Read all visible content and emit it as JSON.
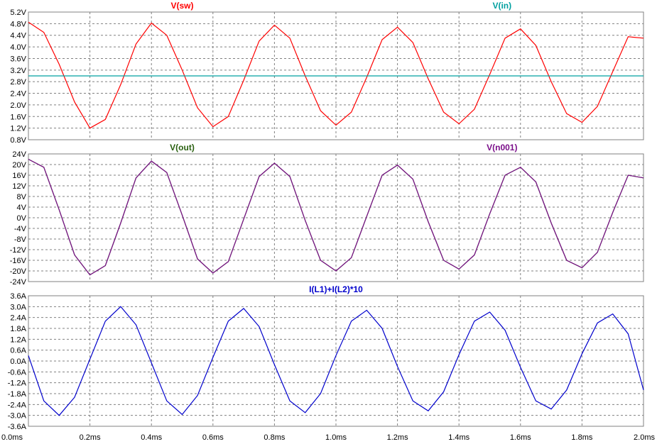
{
  "chart_data": [
    {
      "type": "line",
      "xlim": [
        0,
        2.0
      ],
      "ylim": [
        0.8,
        5.2
      ],
      "x_ticks": [
        "0.0ms",
        "0.2ms",
        "0.4ms",
        "0.6ms",
        "0.8ms",
        "1.0ms",
        "1.2ms",
        "1.4ms",
        "1.6ms",
        "1.8ms",
        "2.0ms"
      ],
      "y_ticks": [
        "0.8V",
        "1.2V",
        "1.6V",
        "2.0V",
        "2.4V",
        "2.8V",
        "3.2V",
        "3.6V",
        "4.0V",
        "4.4V",
        "4.8V",
        "5.2V"
      ],
      "series": [
        {
          "name": "V(sw)",
          "color": "#ff0000",
          "x": [
            0.0,
            0.05,
            0.1,
            0.15,
            0.2,
            0.25,
            0.3,
            0.35,
            0.4,
            0.45,
            0.5,
            0.55,
            0.6,
            0.65,
            0.7,
            0.75,
            0.8,
            0.85,
            0.9,
            0.95,
            1.0,
            1.05,
            1.1,
            1.15,
            1.2,
            1.25,
            1.3,
            1.35,
            1.4,
            1.45,
            1.5,
            1.55,
            1.6,
            1.65,
            1.7,
            1.75,
            1.8,
            1.85,
            1.9,
            1.95,
            2.0
          ],
          "y": [
            4.85,
            4.5,
            3.4,
            2.1,
            1.2,
            1.5,
            2.7,
            4.1,
            4.82,
            4.4,
            3.2,
            1.9,
            1.25,
            1.6,
            2.85,
            4.2,
            4.75,
            4.3,
            3.0,
            1.8,
            1.3,
            1.75,
            2.95,
            4.25,
            4.68,
            4.15,
            2.9,
            1.75,
            1.35,
            1.85,
            3.05,
            4.3,
            4.62,
            4.05,
            2.8,
            1.7,
            1.4,
            1.95,
            3.15,
            4.35,
            4.3
          ]
        },
        {
          "name": "V(in)",
          "color": "#00a0a0",
          "x": [
            0.0,
            2.0
          ],
          "y": [
            3.0,
            3.0
          ]
        }
      ]
    },
    {
      "type": "line",
      "xlim": [
        0,
        2.0
      ],
      "ylim": [
        -24,
        24
      ],
      "x_ticks": [
        "0.0ms",
        "0.2ms",
        "0.4ms",
        "0.6ms",
        "0.8ms",
        "1.0ms",
        "1.2ms",
        "1.4ms",
        "1.6ms",
        "1.8ms",
        "2.0ms"
      ],
      "y_ticks": [
        "-24V",
        "-20V",
        "-16V",
        "-12V",
        "-8V",
        "-4V",
        "0V",
        "4V",
        "8V",
        "12V",
        "16V",
        "20V",
        "24V"
      ],
      "series": [
        {
          "name": "V(out)",
          "color": "#2a6010",
          "x": [
            0.0,
            0.05,
            0.1,
            0.15,
            0.2,
            0.25,
            0.3,
            0.35,
            0.4,
            0.45,
            0.5,
            0.55,
            0.6,
            0.65,
            0.7,
            0.75,
            0.8,
            0.85,
            0.9,
            0.95,
            1.0,
            1.05,
            1.1,
            1.15,
            1.2,
            1.25,
            1.3,
            1.35,
            1.4,
            1.45,
            1.5,
            1.55,
            1.6,
            1.65,
            1.7,
            1.75,
            1.8,
            1.85,
            1.9,
            1.95,
            2.0
          ],
          "y": [
            22,
            19,
            3,
            -14,
            -21.5,
            -18,
            -2,
            15,
            21.3,
            17,
            1,
            -15.5,
            -20.8,
            -16.5,
            -0.5,
            15.5,
            20.5,
            15.5,
            -1,
            -16,
            -20,
            -15,
            0.5,
            16,
            19.8,
            14.5,
            -1.5,
            -16,
            -19.3,
            -14,
            1.5,
            16,
            19,
            13.5,
            -2,
            -16,
            -18.8,
            -13,
            2,
            16,
            15
          ]
        },
        {
          "name": "V(n001)",
          "color": "#7b0f8a",
          "x": [
            0.0,
            0.05,
            0.1,
            0.15,
            0.2,
            0.25,
            0.3,
            0.35,
            0.4,
            0.45,
            0.5,
            0.55,
            0.6,
            0.65,
            0.7,
            0.75,
            0.8,
            0.85,
            0.9,
            0.95,
            1.0,
            1.05,
            1.1,
            1.15,
            1.2,
            1.25,
            1.3,
            1.35,
            1.4,
            1.45,
            1.5,
            1.55,
            1.6,
            1.65,
            1.7,
            1.75,
            1.8,
            1.85,
            1.9,
            1.95,
            2.0
          ],
          "y": [
            22,
            19,
            3,
            -14,
            -21.5,
            -18,
            -2,
            15,
            21.3,
            17,
            1,
            -15.5,
            -20.8,
            -16.5,
            -0.5,
            15.5,
            20.5,
            15.5,
            -1,
            -16,
            -20,
            -15,
            0.5,
            16,
            19.8,
            14.5,
            -1.5,
            -16,
            -19.3,
            -14,
            1.5,
            16,
            19,
            13.5,
            -2,
            -16,
            -18.8,
            -13,
            2,
            16,
            15
          ]
        }
      ]
    },
    {
      "type": "line",
      "xlim": [
        0,
        2.0
      ],
      "ylim": [
        -3.6,
        3.6
      ],
      "x_ticks": [
        "0.0ms",
        "0.2ms",
        "0.4ms",
        "0.6ms",
        "0.8ms",
        "1.0ms",
        "1.2ms",
        "1.4ms",
        "1.6ms",
        "1.8ms",
        "2.0ms"
      ],
      "y_ticks": [
        "-3.6A",
        "-3.0A",
        "-2.4A",
        "-1.8A",
        "-1.2A",
        "-0.6A",
        "0.0A",
        "0.6A",
        "1.2A",
        "1.8A",
        "2.4A",
        "3.0A",
        "3.6A"
      ],
      "series": [
        {
          "name": "I(L1)+I(L2)*10",
          "color": "#0000cc",
          "x": [
            0.0,
            0.05,
            0.1,
            0.15,
            0.2,
            0.25,
            0.3,
            0.35,
            0.4,
            0.45,
            0.5,
            0.55,
            0.6,
            0.65,
            0.7,
            0.75,
            0.8,
            0.85,
            0.9,
            0.95,
            1.0,
            1.05,
            1.1,
            1.15,
            1.2,
            1.25,
            1.3,
            1.35,
            1.4,
            1.45,
            1.5,
            1.55,
            1.6,
            1.65,
            1.7,
            1.75,
            1.8,
            1.85,
            1.9,
            1.95,
            2.0
          ],
          "y": [
            0.3,
            -2.2,
            -3.0,
            -2.0,
            0.1,
            2.2,
            3.0,
            2.0,
            -0.1,
            -2.2,
            -2.95,
            -1.9,
            0.2,
            2.2,
            2.9,
            1.9,
            -0.2,
            -2.2,
            -2.85,
            -1.8,
            0.3,
            2.2,
            2.8,
            1.8,
            -0.3,
            -2.2,
            -2.75,
            -1.7,
            0.35,
            2.2,
            2.7,
            1.7,
            -0.35,
            -2.2,
            -2.65,
            -1.6,
            0.4,
            2.1,
            2.6,
            1.5,
            -1.6
          ]
        }
      ]
    }
  ]
}
